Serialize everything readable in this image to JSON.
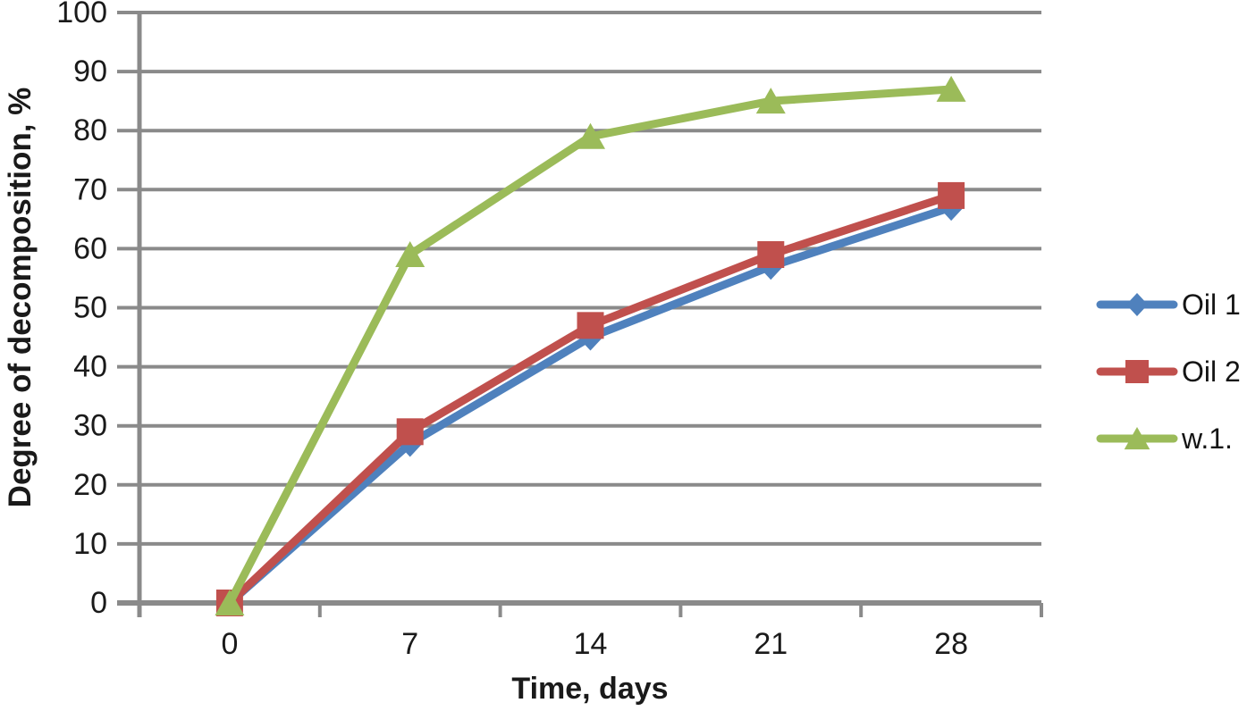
{
  "chart_data": {
    "type": "line",
    "title": "",
    "xlabel": "Time, days",
    "ylabel": "Degree of decomposition, %",
    "categories": [
      "0",
      "7",
      "14",
      "21",
      "28"
    ],
    "x_values": [
      0,
      7,
      14,
      21,
      28
    ],
    "ylim": [
      0,
      100
    ],
    "ytick_step": 10,
    "yticks": [
      "0",
      "10",
      "20",
      "30",
      "40",
      "50",
      "60",
      "70",
      "80",
      "90",
      "100"
    ],
    "grid": "horizontal-major",
    "legend_position": "right",
    "series": [
      {
        "name": "Oil 1",
        "color": "#4F81BD",
        "marker": "diamond",
        "values": [
          0,
          27,
          45,
          57,
          67
        ]
      },
      {
        "name": "Oil 2",
        "color": "#C0504D",
        "marker": "square",
        "values": [
          0,
          29,
          47,
          59,
          69
        ]
      },
      {
        "name": "w.1.",
        "color": "#9BBB59",
        "marker": "triangle",
        "values": [
          0,
          59,
          79,
          85,
          87
        ]
      }
    ],
    "colors": {
      "gridline": "#8A8A8A",
      "axis": "#8A8A8A",
      "text": "#1A1A1A",
      "background": "#FFFFFF"
    }
  }
}
